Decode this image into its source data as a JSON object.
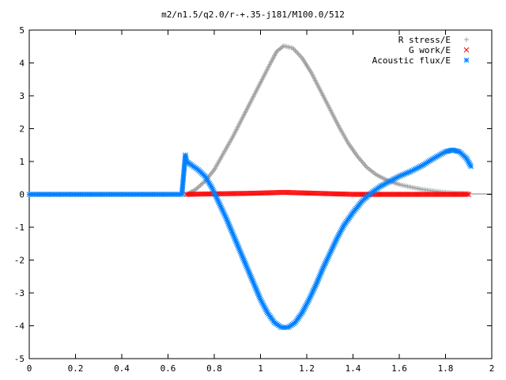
{
  "chart_data": {
    "type": "scatter",
    "title": "m2/n1.5/q2.0/r-+.35-j181/M100.0/512",
    "xlabel": "",
    "ylabel": "",
    "xlim": [
      0,
      2
    ],
    "ylim": [
      -5,
      5
    ],
    "xticks": [
      "0",
      "0.2",
      "0.4",
      "0.6",
      "0.8",
      "1",
      "1.2",
      "1.4",
      "1.6",
      "1.8",
      "2"
    ],
    "yticks": [
      "-5",
      "-4",
      "-3",
      "-2",
      "-1",
      "0",
      "1",
      "2",
      "3",
      "4",
      "5"
    ],
    "grid": false,
    "legend_position": "top-right",
    "series": [
      {
        "name": "R stress/E",
        "marker": "plus",
        "color": "#a0a0a0",
        "points": [
          [
            0.68,
            0.0
          ],
          [
            0.72,
            0.15
          ],
          [
            0.76,
            0.4
          ],
          [
            0.8,
            0.75
          ],
          [
            0.84,
            1.25
          ],
          [
            0.88,
            1.75
          ],
          [
            0.92,
            2.3
          ],
          [
            0.96,
            2.85
          ],
          [
            1.0,
            3.4
          ],
          [
            1.04,
            3.95
          ],
          [
            1.07,
            4.35
          ],
          [
            1.1,
            4.52
          ],
          [
            1.14,
            4.45
          ],
          [
            1.18,
            4.15
          ],
          [
            1.22,
            3.7
          ],
          [
            1.26,
            3.15
          ],
          [
            1.3,
            2.6
          ],
          [
            1.34,
            2.05
          ],
          [
            1.38,
            1.55
          ],
          [
            1.42,
            1.15
          ],
          [
            1.46,
            0.82
          ],
          [
            1.5,
            0.6
          ],
          [
            1.55,
            0.42
          ],
          [
            1.6,
            0.3
          ],
          [
            1.65,
            0.22
          ],
          [
            1.7,
            0.15
          ],
          [
            1.75,
            0.1
          ],
          [
            1.8,
            0.06
          ],
          [
            1.85,
            0.04
          ],
          [
            1.9,
            0.03
          ]
        ]
      },
      {
        "name": "G work/E",
        "marker": "cross",
        "color": "#ff0000",
        "points": [
          [
            0.68,
            0.0
          ],
          [
            0.75,
            0.01
          ],
          [
            0.85,
            0.02
          ],
          [
            0.95,
            0.03
          ],
          [
            1.05,
            0.05
          ],
          [
            1.1,
            0.06
          ],
          [
            1.2,
            0.04
          ],
          [
            1.3,
            0.02
          ],
          [
            1.4,
            0.0
          ],
          [
            1.5,
            0.0
          ],
          [
            1.6,
            0.0
          ],
          [
            1.7,
            0.0
          ],
          [
            1.8,
            0.0
          ],
          [
            1.9,
            0.0
          ]
        ]
      },
      {
        "name": "Acoustic flux/E",
        "marker": "star",
        "color": "#0080ff",
        "points": [
          [
            0.0,
            0.0
          ],
          [
            0.2,
            0.0
          ],
          [
            0.4,
            0.0
          ],
          [
            0.6,
            0.0
          ],
          [
            0.66,
            0.0
          ],
          [
            0.675,
            1.2
          ],
          [
            0.68,
            1.0
          ],
          [
            0.7,
            0.9
          ],
          [
            0.73,
            0.75
          ],
          [
            0.76,
            0.55
          ],
          [
            0.79,
            0.2
          ],
          [
            0.82,
            -0.25
          ],
          [
            0.85,
            -0.7
          ],
          [
            0.88,
            -1.2
          ],
          [
            0.91,
            -1.7
          ],
          [
            0.94,
            -2.2
          ],
          [
            0.97,
            -2.7
          ],
          [
            1.0,
            -3.2
          ],
          [
            1.03,
            -3.6
          ],
          [
            1.06,
            -3.9
          ],
          [
            1.09,
            -4.05
          ],
          [
            1.12,
            -4.05
          ],
          [
            1.15,
            -3.9
          ],
          [
            1.18,
            -3.6
          ],
          [
            1.21,
            -3.2
          ],
          [
            1.24,
            -2.75
          ],
          [
            1.27,
            -2.25
          ],
          [
            1.3,
            -1.8
          ],
          [
            1.33,
            -1.35
          ],
          [
            1.36,
            -0.95
          ],
          [
            1.4,
            -0.55
          ],
          [
            1.44,
            -0.2
          ],
          [
            1.48,
            0.05
          ],
          [
            1.52,
            0.25
          ],
          [
            1.56,
            0.4
          ],
          [
            1.6,
            0.55
          ],
          [
            1.65,
            0.7
          ],
          [
            1.7,
            0.88
          ],
          [
            1.75,
            1.1
          ],
          [
            1.8,
            1.3
          ],
          [
            1.83,
            1.35
          ],
          [
            1.86,
            1.3
          ],
          [
            1.89,
            1.1
          ],
          [
            1.91,
            0.85
          ]
        ]
      }
    ]
  }
}
